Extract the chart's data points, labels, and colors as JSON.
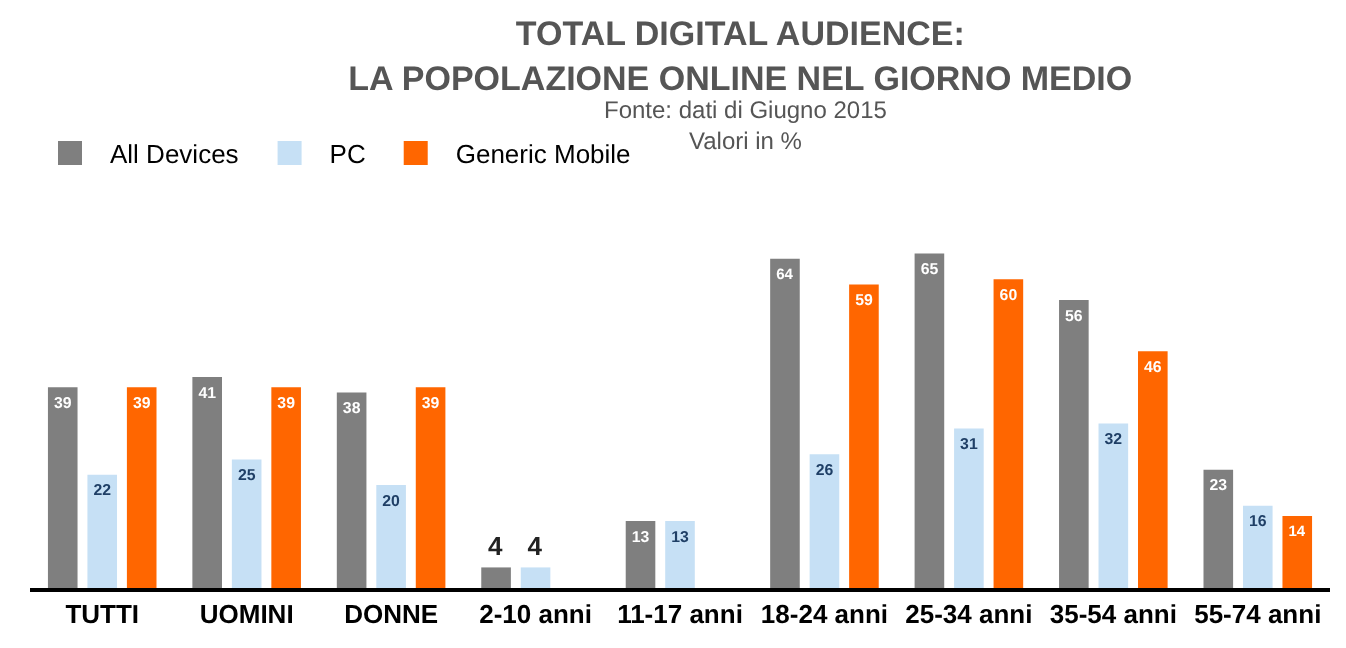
{
  "chart_data": {
    "type": "bar",
    "title": "TOTAL DIGITAL AUDIENCE:\nLA POPOLAZIONE ONLINE NEL GIORNO MEDIO",
    "subtitle": "Fonte: dati di Giugno 2015\nValori in %",
    "categories": [
      "TUTTI",
      "UOMINI",
      "DONNE",
      "2-10 anni",
      "11-17 anni",
      "18-24 anni",
      "25-34 anni",
      "35-54 anni",
      "55-74 anni"
    ],
    "series": [
      {
        "name": "All Devices",
        "color": "#7f7f7f",
        "values": [
          39,
          41,
          38,
          4,
          13,
          64,
          65,
          56,
          23
        ]
      },
      {
        "name": "PC",
        "color": "#c6e0f5",
        "values": [
          22,
          25,
          20,
          4,
          13,
          26,
          31,
          32,
          16
        ]
      },
      {
        "name": "Generic Mobile",
        "color": "#ff6600",
        "values": [
          39,
          39,
          39,
          null,
          null,
          59,
          60,
          46,
          14
        ]
      }
    ],
    "data_labels": true,
    "legend": "top left",
    "grid": false
  }
}
